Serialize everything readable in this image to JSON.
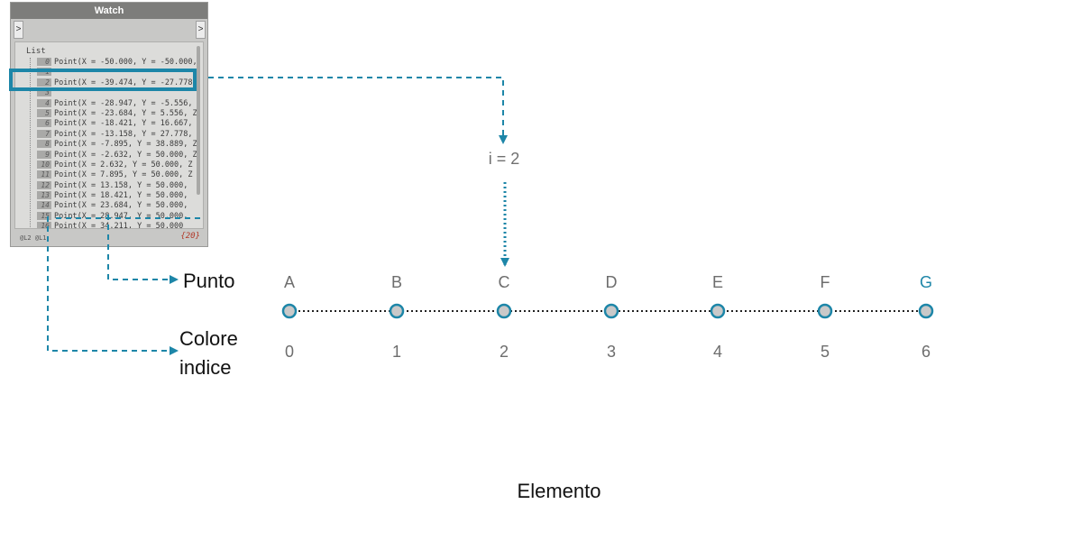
{
  "watch": {
    "title": "Watch",
    "in_port": ">",
    "out_port": ">",
    "list_label": "List",
    "rows": [
      {
        "index": "0",
        "text": "Point(X = -50.000, Y = -50.000,"
      },
      {
        "index": "1",
        "text": ""
      },
      {
        "index": "2",
        "text": "Point(X = -39.474, Y = -27.778,"
      },
      {
        "index": "3",
        "text": ""
      },
      {
        "index": "4",
        "text": "Point(X = -28.947, Y = -5.556,"
      },
      {
        "index": "5",
        "text": "Point(X = -23.684, Y = 5.556, Z"
      },
      {
        "index": "6",
        "text": "Point(X = -18.421, Y = 16.667,"
      },
      {
        "index": "7",
        "text": "Point(X = -13.158, Y = 27.778,"
      },
      {
        "index": "8",
        "text": "Point(X = -7.895, Y = 38.889, Z"
      },
      {
        "index": "9",
        "text": "Point(X = -2.632, Y = 50.000, Z"
      },
      {
        "index": "10",
        "text": "Point(X = 2.632, Y = 50.000, Z"
      },
      {
        "index": "11",
        "text": "Point(X = 7.895, Y = 50.000, Z"
      },
      {
        "index": "12",
        "text": "Point(X = 13.158, Y = 50.000,"
      },
      {
        "index": "13",
        "text": "Point(X = 18.421, Y = 50.000,"
      },
      {
        "index": "14",
        "text": "Point(X = 23.684, Y = 50.000,"
      },
      {
        "index": "15",
        "text": "Point(X = 28.947, Y = 50.000,"
      },
      {
        "index": "16",
        "text": "Point(X = 34.211, Y = 50.000"
      }
    ],
    "levels": "@L2 @L1",
    "count": "{20}"
  },
  "labels": {
    "punto": "Punto",
    "colore": "Colore",
    "indice": "indice",
    "index_expr": "i = 2",
    "bottom": "Elemento"
  },
  "items": {
    "letters": [
      "A",
      "B",
      "C",
      "D",
      "E",
      "F",
      "G"
    ],
    "indices": [
      "0",
      "1",
      "2",
      "3",
      "4",
      "5",
      "6"
    ],
    "selected_index": 2,
    "highlighted_letter": "G"
  },
  "colors": {
    "accent": "#1d86a8",
    "node_fill": "#c9c9c9",
    "text_gray": "#6d6d6d"
  }
}
